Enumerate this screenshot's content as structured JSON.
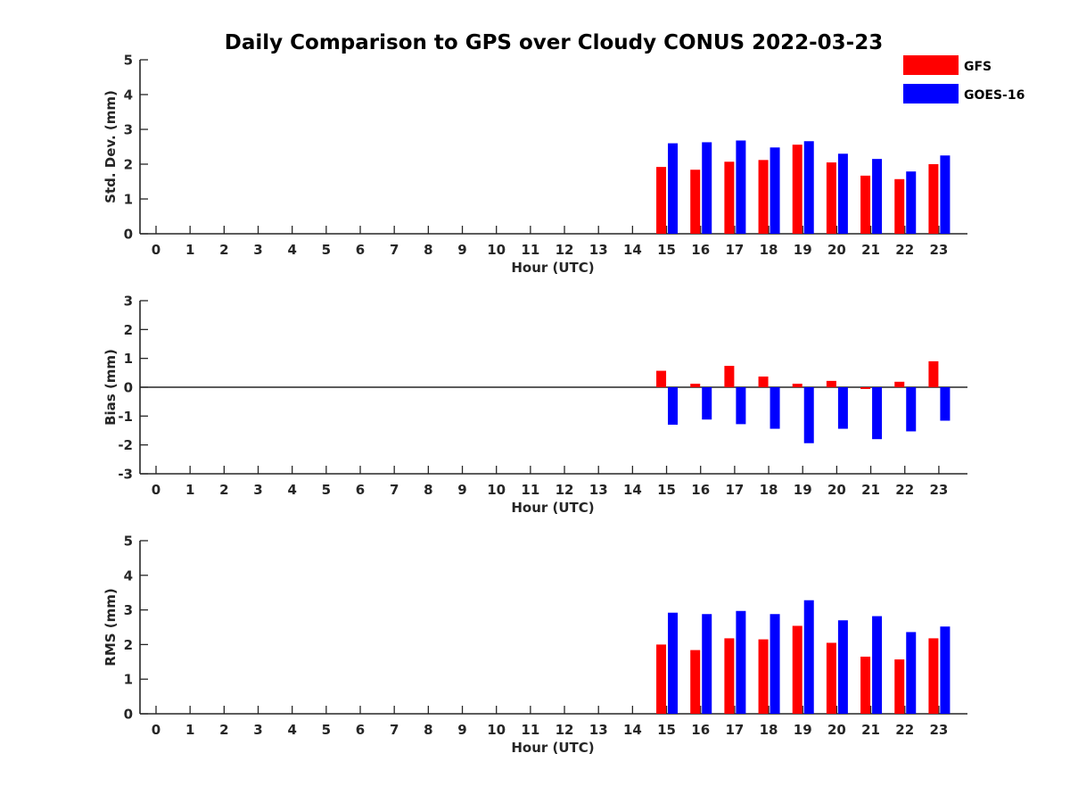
{
  "chart_data": {
    "title": "Daily Comparison to GPS over Cloudy CONUS 2022-03-23",
    "legend": {
      "placement": "top-right",
      "entries": [
        {
          "name": "GFS",
          "color": "#ff0000"
        },
        {
          "name": "GOES-16",
          "color": "#0000ff"
        }
      ]
    },
    "panels": [
      {
        "type": "bar",
        "ylabel": "Std. Dev. (mm)",
        "xlabel": "Hour (UTC)",
        "ylim": [
          0,
          5
        ],
        "yticks": [
          0,
          1,
          2,
          3,
          4,
          5
        ],
        "categories": [
          "0",
          "1",
          "2",
          "3",
          "4",
          "5",
          "6",
          "7",
          "8",
          "9",
          "10",
          "11",
          "12",
          "13",
          "14",
          "15",
          "16",
          "17",
          "18",
          "19",
          "20",
          "21",
          "22",
          "23"
        ],
        "series": [
          {
            "name": "GFS",
            "color": "#ff0000",
            "values": [
              null,
              null,
              null,
              null,
              null,
              null,
              null,
              null,
              null,
              null,
              null,
              null,
              null,
              null,
              null,
              1.92,
              1.84,
              2.07,
              2.12,
              2.56,
              2.05,
              1.67,
              1.57,
              2.0
            ]
          },
          {
            "name": "GOES-16",
            "color": "#0000ff",
            "values": [
              null,
              null,
              null,
              null,
              null,
              null,
              null,
              null,
              null,
              null,
              null,
              null,
              null,
              null,
              null,
              2.6,
              2.63,
              2.68,
              2.48,
              2.66,
              2.3,
              2.15,
              1.79,
              2.25
            ]
          }
        ]
      },
      {
        "type": "bar",
        "ylabel": "Bias (mm)",
        "xlabel": "Hour (UTC)",
        "ylim": [
          -3,
          3
        ],
        "yticks": [
          -3,
          -2,
          -1,
          0,
          1,
          2,
          3
        ],
        "zero_line": true,
        "categories": [
          "0",
          "1",
          "2",
          "3",
          "4",
          "5",
          "6",
          "7",
          "8",
          "9",
          "10",
          "11",
          "12",
          "13",
          "14",
          "15",
          "16",
          "17",
          "18",
          "19",
          "20",
          "21",
          "22",
          "23"
        ],
        "series": [
          {
            "name": "GFS",
            "color": "#ff0000",
            "values": [
              null,
              null,
              null,
              null,
              null,
              null,
              null,
              null,
              null,
              null,
              null,
              null,
              null,
              null,
              null,
              0.57,
              0.12,
              0.74,
              0.37,
              0.12,
              0.22,
              -0.06,
              0.19,
              0.9
            ]
          },
          {
            "name": "GOES-16",
            "color": "#0000ff",
            "values": [
              null,
              null,
              null,
              null,
              null,
              null,
              null,
              null,
              null,
              null,
              null,
              null,
              null,
              null,
              null,
              -1.3,
              -1.12,
              -1.28,
              -1.44,
              -1.94,
              -1.44,
              -1.8,
              -1.53,
              -1.16
            ]
          }
        ]
      },
      {
        "type": "bar",
        "ylabel": "RMS (mm)",
        "xlabel": "Hour (UTC)",
        "ylim": [
          0,
          5
        ],
        "yticks": [
          0,
          1,
          2,
          3,
          4,
          5
        ],
        "categories": [
          "0",
          "1",
          "2",
          "3",
          "4",
          "5",
          "6",
          "7",
          "8",
          "9",
          "10",
          "11",
          "12",
          "13",
          "14",
          "15",
          "16",
          "17",
          "18",
          "19",
          "20",
          "21",
          "22",
          "23"
        ],
        "series": [
          {
            "name": "GFS",
            "color": "#ff0000",
            "values": [
              null,
              null,
              null,
              null,
              null,
              null,
              null,
              null,
              null,
              null,
              null,
              null,
              null,
              null,
              null,
              2.0,
              1.84,
              2.18,
              2.15,
              2.54,
              2.05,
              1.65,
              1.57,
              2.18
            ]
          },
          {
            "name": "GOES-16",
            "color": "#0000ff",
            "values": [
              null,
              null,
              null,
              null,
              null,
              null,
              null,
              null,
              null,
              null,
              null,
              null,
              null,
              null,
              null,
              2.92,
              2.88,
              2.97,
              2.88,
              3.28,
              2.7,
              2.82,
              2.36,
              2.52
            ]
          }
        ]
      }
    ]
  }
}
